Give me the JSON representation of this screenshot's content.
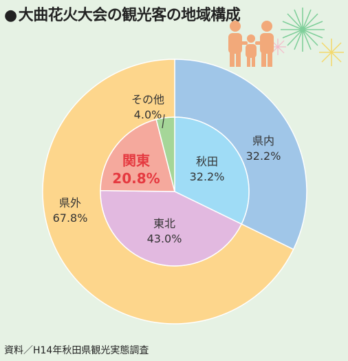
{
  "title": "大曲花火大会の観光客の地域構成",
  "source": "資料／H14年秋田県観光実態調査",
  "chart_data": {
    "type": "donut",
    "outer_ring": [
      {
        "name": "県内",
        "value": 32.2,
        "label": "32.2%",
        "color": "#a0c6e8"
      },
      {
        "name": "県外",
        "value": 67.8,
        "label": "67.8%",
        "color": "#fdd68c"
      }
    ],
    "inner_ring": [
      {
        "name": "秋田",
        "value": 32.2,
        "label": "32.2%",
        "color": "#9fdcf6"
      },
      {
        "name": "東北",
        "value": 43.0,
        "label": "43.0%",
        "color": "#e2b9e0"
      },
      {
        "name": "関東",
        "value": 20.8,
        "label": "20.8%",
        "color": "#f5a99d",
        "highlight": "#e53940"
      },
      {
        "name": "その他",
        "value": 4.0,
        "label": "4.0%",
        "color": "#a5d698"
      }
    ]
  }
}
